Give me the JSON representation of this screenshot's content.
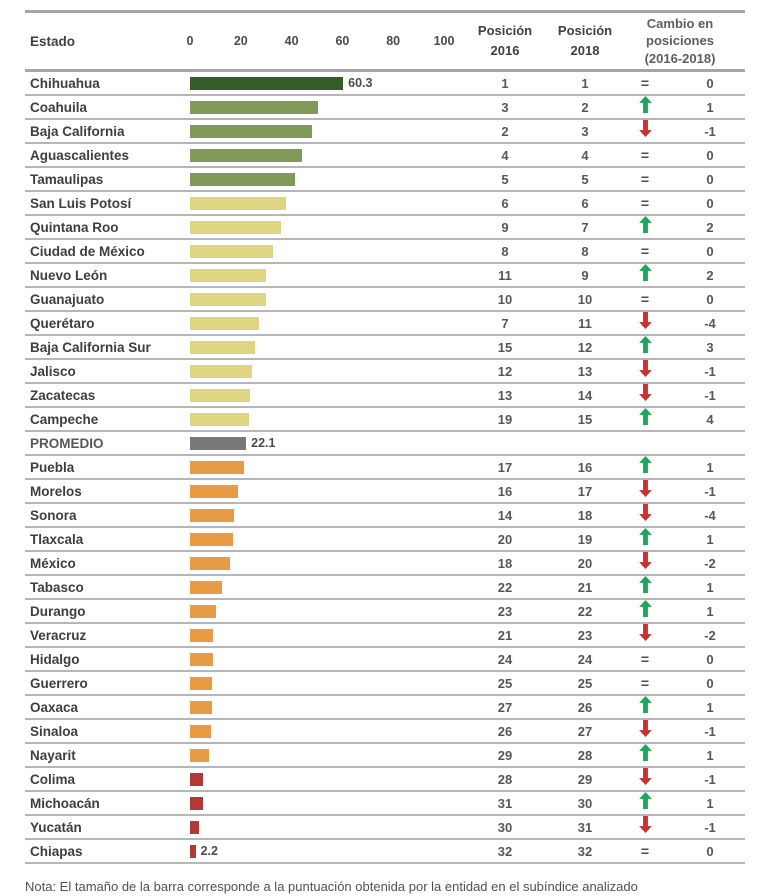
{
  "header": {
    "estado_label": "Estado",
    "posicion_2016_label": "Posición\n2016",
    "posicion_2018_label": "Posición\n2018",
    "cambio_label": "Cambio en\nposiciones\n(2016-2018)"
  },
  "note": "Nota: El tamaño de la barra corresponde a la puntuación obtenida por la entidad en el subíndice analizado",
  "colors": {
    "dark_green": "#335c26",
    "green": "#7f9a59",
    "yellow": "#e0d382",
    "gray": "#77777c",
    "orange": "#e89a45",
    "red": "#b03a38",
    "arrow_up": "#1ea75a",
    "arrow_down": "#cc2f2f",
    "equal_sign": "#4c4c4e"
  },
  "chart_data": {
    "type": "bar",
    "title": "",
    "xlabel": "",
    "ylabel": "",
    "axis_ticks": [
      0,
      20,
      40,
      60,
      80,
      100
    ],
    "xlim": [
      0,
      100
    ],
    "rows": [
      {
        "name": "Chihuahua",
        "value": 60.3,
        "label": "60.3",
        "color": "dark_green",
        "pos2016": 1,
        "pos2018": 1,
        "dir": "equal",
        "change": 0
      },
      {
        "name": "Coahuila",
        "value": 50.4,
        "label": null,
        "color": "green",
        "pos2016": 3,
        "pos2018": 2,
        "dir": "up",
        "change": 1
      },
      {
        "name": "Baja California",
        "value": 48.1,
        "label": null,
        "color": "green",
        "pos2016": 2,
        "pos2018": 3,
        "dir": "down",
        "change": -1
      },
      {
        "name": "Aguascalientes",
        "value": 44.2,
        "label": null,
        "color": "green",
        "pos2016": 4,
        "pos2018": 4,
        "dir": "equal",
        "change": 0
      },
      {
        "name": "Tamaulipas",
        "value": 41.2,
        "label": null,
        "color": "green",
        "pos2016": 5,
        "pos2018": 5,
        "dir": "equal",
        "change": 0
      },
      {
        "name": "San Luis Potosí",
        "value": 37.8,
        "label": null,
        "color": "yellow",
        "pos2016": 6,
        "pos2018": 6,
        "dir": "equal",
        "change": 0
      },
      {
        "name": "Quintana Roo",
        "value": 35.8,
        "label": null,
        "color": "yellow",
        "pos2016": 9,
        "pos2018": 7,
        "dir": "up",
        "change": 2
      },
      {
        "name": "Ciudad de México",
        "value": 32.7,
        "label": null,
        "color": "yellow",
        "pos2016": 8,
        "pos2018": 8,
        "dir": "equal",
        "change": 0
      },
      {
        "name": "Nuevo León",
        "value": 30.0,
        "label": null,
        "color": "yellow",
        "pos2016": 11,
        "pos2018": 9,
        "dir": "up",
        "change": 2
      },
      {
        "name": "Guanajuato",
        "value": 29.8,
        "label": null,
        "color": "yellow",
        "pos2016": 10,
        "pos2018": 10,
        "dir": "equal",
        "change": 0
      },
      {
        "name": "Querétaro",
        "value": 27.3,
        "label": null,
        "color": "yellow",
        "pos2016": 7,
        "pos2018": 11,
        "dir": "down",
        "change": -4
      },
      {
        "name": "Baja California Sur",
        "value": 25.7,
        "label": null,
        "color": "yellow",
        "pos2016": 15,
        "pos2018": 12,
        "dir": "up",
        "change": 3
      },
      {
        "name": "Jalisco",
        "value": 24.6,
        "label": null,
        "color": "yellow",
        "pos2016": 12,
        "pos2018": 13,
        "dir": "down",
        "change": -1
      },
      {
        "name": "Zacatecas",
        "value": 23.5,
        "label": null,
        "color": "yellow",
        "pos2016": 13,
        "pos2018": 14,
        "dir": "down",
        "change": -1
      },
      {
        "name": "Campeche",
        "value": 23.3,
        "label": null,
        "color": "yellow",
        "pos2016": 19,
        "pos2018": 15,
        "dir": "up",
        "change": 4
      },
      {
        "name": "PROMEDIO",
        "value": 22.1,
        "label": "22.1",
        "color": "gray",
        "pos2016": null,
        "pos2018": null,
        "dir": null,
        "change": null,
        "is_average": true
      },
      {
        "name": "Puebla",
        "value": 21.4,
        "label": null,
        "color": "orange",
        "pos2016": 17,
        "pos2018": 16,
        "dir": "up",
        "change": 1
      },
      {
        "name": "Morelos",
        "value": 19.0,
        "label": null,
        "color": "orange",
        "pos2016": 16,
        "pos2018": 17,
        "dir": "down",
        "change": -1
      },
      {
        "name": "Sonora",
        "value": 17.3,
        "label": null,
        "color": "orange",
        "pos2016": 14,
        "pos2018": 18,
        "dir": "down",
        "change": -4
      },
      {
        "name": "Tlaxcala",
        "value": 16.8,
        "label": null,
        "color": "orange",
        "pos2016": 20,
        "pos2018": 19,
        "dir": "up",
        "change": 1
      },
      {
        "name": "México",
        "value": 15.6,
        "label": null,
        "color": "orange",
        "pos2016": 18,
        "pos2018": 20,
        "dir": "down",
        "change": -2
      },
      {
        "name": "Tabasco",
        "value": 12.6,
        "label": null,
        "color": "orange",
        "pos2016": 22,
        "pos2018": 21,
        "dir": "up",
        "change": 1
      },
      {
        "name": "Durango",
        "value": 10.1,
        "label": null,
        "color": "orange",
        "pos2016": 23,
        "pos2018": 22,
        "dir": "up",
        "change": 1
      },
      {
        "name": "Veracruz",
        "value": 9.2,
        "label": null,
        "color": "orange",
        "pos2016": 21,
        "pos2018": 23,
        "dir": "down",
        "change": -2
      },
      {
        "name": "Hidalgo",
        "value": 9.0,
        "label": null,
        "color": "orange",
        "pos2016": 24,
        "pos2018": 24,
        "dir": "equal",
        "change": 0
      },
      {
        "name": "Guerrero",
        "value": 8.8,
        "label": null,
        "color": "orange",
        "pos2016": 25,
        "pos2018": 25,
        "dir": "equal",
        "change": 0
      },
      {
        "name": "Oaxaca",
        "value": 8.5,
        "label": null,
        "color": "orange",
        "pos2016": 27,
        "pos2018": 26,
        "dir": "up",
        "change": 1
      },
      {
        "name": "Sinaloa",
        "value": 8.4,
        "label": null,
        "color": "orange",
        "pos2016": 26,
        "pos2018": 27,
        "dir": "down",
        "change": -1
      },
      {
        "name": "Nayarit",
        "value": 7.6,
        "label": null,
        "color": "orange",
        "pos2016": 29,
        "pos2018": 28,
        "dir": "up",
        "change": 1
      },
      {
        "name": "Colima",
        "value": 5.3,
        "label": null,
        "color": "red",
        "pos2016": 28,
        "pos2018": 29,
        "dir": "down",
        "change": -1
      },
      {
        "name": "Michoacán",
        "value": 5.2,
        "label": null,
        "color": "red",
        "pos2016": 31,
        "pos2018": 30,
        "dir": "up",
        "change": 1
      },
      {
        "name": "Yucatán",
        "value": 3.4,
        "label": null,
        "color": "red",
        "pos2016": 30,
        "pos2018": 31,
        "dir": "down",
        "change": -1
      },
      {
        "name": "Chiapas",
        "value": 2.2,
        "label": "2.2",
        "color": "red",
        "pos2016": 32,
        "pos2018": 32,
        "dir": "equal",
        "change": 0
      }
    ]
  }
}
